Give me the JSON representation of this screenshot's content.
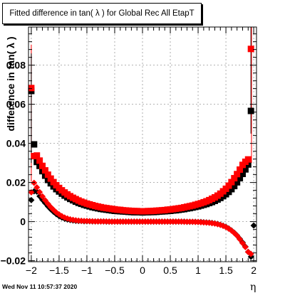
{
  "title": "Fitted difference in tan( λ ) for Global Rec All EtapT",
  "ylabel": "difference in tan( λ )",
  "xlabel": "η",
  "footer": "Wed Nov 11 10:57:37 2020",
  "colors": {
    "black": "#000000",
    "red": "#ff0000",
    "grid": "#9a9a9a"
  },
  "chart_data": {
    "type": "scatter",
    "title": "Fitted difference in tan( λ ) for Global Rec All EtapT",
    "xlabel": "η",
    "ylabel": "difference in tan( λ )",
    "xlim": [
      -2.05,
      2.05
    ],
    "ylim": [
      -0.0205,
      0.0995
    ],
    "grid": true,
    "x_ticks": [
      -2,
      -1.5,
      -1,
      -0.5,
      0,
      0.5,
      1,
      1.5,
      2
    ],
    "x_tick_labels": [
      "−2",
      "−1.5",
      "−1",
      "−0.5",
      "0",
      "0.5",
      "1",
      "1.5",
      "2"
    ],
    "y_ticks": [
      -0.02,
      0,
      0.02,
      0.04,
      0.06,
      0.08
    ],
    "y_tick_labels": [
      "−0.02",
      "0",
      "0.02",
      "0.04",
      "0.06",
      "0.08"
    ],
    "series": [
      {
        "marker": "square",
        "color": "#000000",
        "x": [
          -2.0,
          -1.95,
          -1.9,
          -1.85,
          -1.8,
          -1.75,
          -1.7,
          -1.65,
          -1.6,
          -1.55,
          -1.5,
          -1.45,
          -1.4,
          -1.35,
          -1.3,
          -1.25,
          -1.2,
          -1.15,
          -1.1,
          -1.05,
          -1.0,
          -0.95,
          -0.9,
          -0.85,
          -0.8,
          -0.75,
          -0.7,
          -0.65,
          -0.6,
          -0.55,
          -0.5,
          -0.45,
          -0.4,
          -0.35,
          -0.3,
          -0.25,
          -0.2,
          -0.15,
          -0.1,
          -0.05,
          0.0,
          0.05,
          0.1,
          0.15,
          0.2,
          0.25,
          0.3,
          0.35,
          0.4,
          0.45,
          0.5,
          0.55,
          0.6,
          0.65,
          0.7,
          0.75,
          0.8,
          0.85,
          0.9,
          0.95,
          1.0,
          1.05,
          1.1,
          1.15,
          1.2,
          1.25,
          1.3,
          1.35,
          1.4,
          1.45,
          1.5,
          1.55,
          1.6,
          1.65,
          1.7,
          1.75,
          1.8,
          1.85,
          1.9,
          1.95
        ],
        "y": [
          0.0668,
          0.0395,
          0.0305,
          0.0285,
          0.0258,
          0.0235,
          0.0213,
          0.0196,
          0.018,
          0.0166,
          0.0154,
          0.0143,
          0.0133,
          0.0124,
          0.0116,
          0.0109,
          0.0102,
          0.0096,
          0.0091,
          0.0086,
          0.0082,
          0.0078,
          0.0074,
          0.0071,
          0.0068,
          0.0065,
          0.0063,
          0.0061,
          0.0059,
          0.0057,
          0.0055,
          0.0054,
          0.0053,
          0.0052,
          0.0051,
          0.005,
          0.0049,
          0.0048,
          0.0048,
          0.0048,
          0.0047,
          0.0048,
          0.0048,
          0.0049,
          0.0049,
          0.005,
          0.0051,
          0.0052,
          0.0053,
          0.0054,
          0.0055,
          0.0057,
          0.0058,
          0.006,
          0.0062,
          0.0064,
          0.0067,
          0.0069,
          0.0072,
          0.0075,
          0.0078,
          0.0082,
          0.0086,
          0.009,
          0.0095,
          0.01,
          0.0106,
          0.0113,
          0.0121,
          0.013,
          0.014,
          0.0152,
          0.0166,
          0.0182,
          0.0201,
          0.0222,
          0.0244,
          0.0267,
          0.0292,
          0.0566
        ]
      },
      {
        "marker": "square",
        "color": "#ff0000",
        "x": [
          -2.0,
          -1.95,
          -1.9,
          -1.85,
          -1.8,
          -1.75,
          -1.7,
          -1.65,
          -1.6,
          -1.55,
          -1.5,
          -1.45,
          -1.4,
          -1.35,
          -1.3,
          -1.25,
          -1.2,
          -1.15,
          -1.1,
          -1.05,
          -1.0,
          -0.95,
          -0.9,
          -0.85,
          -0.8,
          -0.75,
          -0.7,
          -0.65,
          -0.6,
          -0.55,
          -0.5,
          -0.45,
          -0.4,
          -0.35,
          -0.3,
          -0.25,
          -0.2,
          -0.15,
          -0.1,
          -0.05,
          0.0,
          0.05,
          0.1,
          0.15,
          0.2,
          0.25,
          0.3,
          0.35,
          0.4,
          0.45,
          0.5,
          0.55,
          0.6,
          0.65,
          0.7,
          0.75,
          0.8,
          0.85,
          0.9,
          0.95,
          1.0,
          1.05,
          1.1,
          1.15,
          1.2,
          1.25,
          1.3,
          1.35,
          1.4,
          1.45,
          1.5,
          1.55,
          1.6,
          1.65,
          1.7,
          1.75,
          1.8,
          1.85,
          1.9,
          1.95
        ],
        "y": [
          0.0683,
          0.0335,
          0.0338,
          0.0312,
          0.0285,
          0.0262,
          0.024,
          0.022,
          0.0202,
          0.0186,
          0.0172,
          0.016,
          0.0149,
          0.0139,
          0.013,
          0.0122,
          0.0115,
          0.0108,
          0.0102,
          0.0097,
          0.0092,
          0.0088,
          0.0084,
          0.008,
          0.0077,
          0.0074,
          0.0071,
          0.0069,
          0.0067,
          0.0065,
          0.0063,
          0.0061,
          0.006,
          0.0058,
          0.0057,
          0.0056,
          0.0055,
          0.0054,
          0.0054,
          0.0053,
          0.0053,
          0.0053,
          0.0054,
          0.0054,
          0.0055,
          0.0056,
          0.0057,
          0.0058,
          0.0059,
          0.0061,
          0.0062,
          0.0064,
          0.0066,
          0.0068,
          0.007,
          0.0073,
          0.0076,
          0.0079,
          0.0082,
          0.0086,
          0.009,
          0.0094,
          0.0099,
          0.0104,
          0.011,
          0.0117,
          0.0124,
          0.0133,
          0.0143,
          0.0155,
          0.0168,
          0.0184,
          0.0202,
          0.0222,
          0.0243,
          0.0266,
          0.029,
          0.0306,
          0.0318,
          0.0883
        ]
      },
      {
        "marker": "diamond",
        "color": "#000000",
        "x": [
          -2.0,
          -1.95,
          -1.9,
          -1.85,
          -1.8,
          -1.75,
          -1.7,
          -1.65,
          -1.6,
          -1.55,
          -1.5,
          -1.45,
          -1.4,
          -1.35,
          -1.3,
          -1.25,
          -1.2,
          -1.15,
          -1.1,
          -1.05,
          -1.0,
          -0.95,
          -0.9,
          -0.85,
          -0.8,
          -0.75,
          -0.7,
          -0.65,
          -0.6,
          -0.55,
          -0.5,
          -0.45,
          -0.4,
          -0.35,
          -0.3,
          -0.25,
          -0.2,
          -0.15,
          -0.1,
          -0.05,
          0.0,
          0.05,
          0.1,
          0.15,
          0.2,
          0.25,
          0.3,
          0.35,
          0.4,
          0.45,
          0.5,
          0.55,
          0.6,
          0.65,
          0.7,
          0.75,
          0.8,
          0.85,
          0.9,
          0.95,
          1.0,
          1.05,
          1.1,
          1.15,
          1.2,
          1.25,
          1.3,
          1.35,
          1.4,
          1.45,
          1.5,
          1.55,
          1.6,
          1.65,
          1.7,
          1.75,
          1.8,
          1.85,
          1.9,
          1.95,
          2.0
        ],
        "y": [
          0.011,
          0.0155,
          0.0153,
          0.013,
          0.0112,
          0.0095,
          0.0078,
          0.0063,
          0.005,
          0.0038,
          0.0028,
          0.0021,
          0.0015,
          0.0011,
          0.0008,
          0.0006,
          0.0004,
          0.0003,
          0.0003,
          0.0002,
          0.0002,
          0.0002,
          0.0001,
          0.0001,
          0.0001,
          0.0001,
          0.0001,
          0.0,
          0.0,
          0.0,
          0.0,
          0.0,
          0.0,
          0.0,
          0.0,
          0.0,
          0.0,
          0.0,
          0.0,
          0.0,
          0.0,
          0.0,
          0.0,
          0.0,
          0.0,
          0.0,
          0.0,
          0.0,
          0.0,
          0.0,
          0.0,
          0.0,
          0.0,
          0.0,
          0.0,
          0.0,
          -0.0001,
          -0.0001,
          -0.0001,
          -0.0001,
          -0.0002,
          -0.0002,
          -0.0003,
          -0.0004,
          -0.0005,
          -0.0007,
          -0.0009,
          -0.0012,
          -0.0016,
          -0.0021,
          -0.0027,
          -0.0035,
          -0.0045,
          -0.0057,
          -0.0071,
          -0.0088,
          -0.0107,
          -0.0128,
          -0.0155,
          -0.018,
          -0.002
        ]
      },
      {
        "marker": "diamond",
        "color": "#ff0000",
        "x": [
          -2.0,
          -1.95,
          -1.9,
          -1.85,
          -1.8,
          -1.75,
          -1.7,
          -1.65,
          -1.6,
          -1.55,
          -1.5,
          -1.45,
          -1.4,
          -1.35,
          -1.3,
          -1.25,
          -1.2,
          -1.15,
          -1.1,
          -1.05,
          -1.0,
          -0.95,
          -0.9,
          -0.85,
          -0.8,
          -0.75,
          -0.7,
          -0.65,
          -0.6,
          -0.55,
          -0.5,
          -0.45,
          -0.4,
          -0.35,
          -0.3,
          -0.25,
          -0.2,
          -0.15,
          -0.1,
          -0.05,
          0.0,
          0.05,
          0.1,
          0.15,
          0.2,
          0.25,
          0.3,
          0.35,
          0.4,
          0.45,
          0.5,
          0.55,
          0.6,
          0.65,
          0.7,
          0.75,
          0.8,
          0.85,
          0.9,
          0.95,
          1.0,
          1.05,
          1.1,
          1.15,
          1.2,
          1.25,
          1.3,
          1.35,
          1.4,
          1.45,
          1.5,
          1.55,
          1.6,
          1.65,
          1.7,
          1.75,
          1.8,
          1.85,
          1.9,
          1.95
        ],
        "y": [
          0.015,
          0.0198,
          0.0175,
          0.0151,
          0.0129,
          0.0109,
          0.0091,
          0.0074,
          0.006,
          0.0047,
          0.0037,
          0.0028,
          0.0021,
          0.0016,
          0.0012,
          0.0009,
          0.0007,
          0.0005,
          0.0004,
          0.0003,
          0.0003,
          0.0002,
          0.0002,
          0.0001,
          0.0001,
          0.0001,
          0.0001,
          0.0001,
          0.0,
          0.0,
          0.0,
          0.0,
          0.0,
          0.0,
          0.0,
          0.0,
          0.0,
          0.0,
          0.0,
          0.0,
          0.0,
          0.0,
          0.0,
          0.0,
          0.0,
          0.0,
          0.0,
          0.0,
          0.0,
          0.0,
          0.0,
          0.0,
          0.0,
          0.0,
          0.0,
          -0.0001,
          -0.0001,
          -0.0001,
          -0.0001,
          -0.0002,
          -0.0002,
          -0.0003,
          -0.0004,
          -0.0005,
          -0.0006,
          -0.0008,
          -0.001,
          -0.0013,
          -0.0017,
          -0.0022,
          -0.0028,
          -0.0036,
          -0.0046,
          -0.0058,
          -0.0072,
          -0.009,
          -0.011,
          -0.013,
          -0.0155,
          -0.0165
        ]
      }
    ]
  }
}
